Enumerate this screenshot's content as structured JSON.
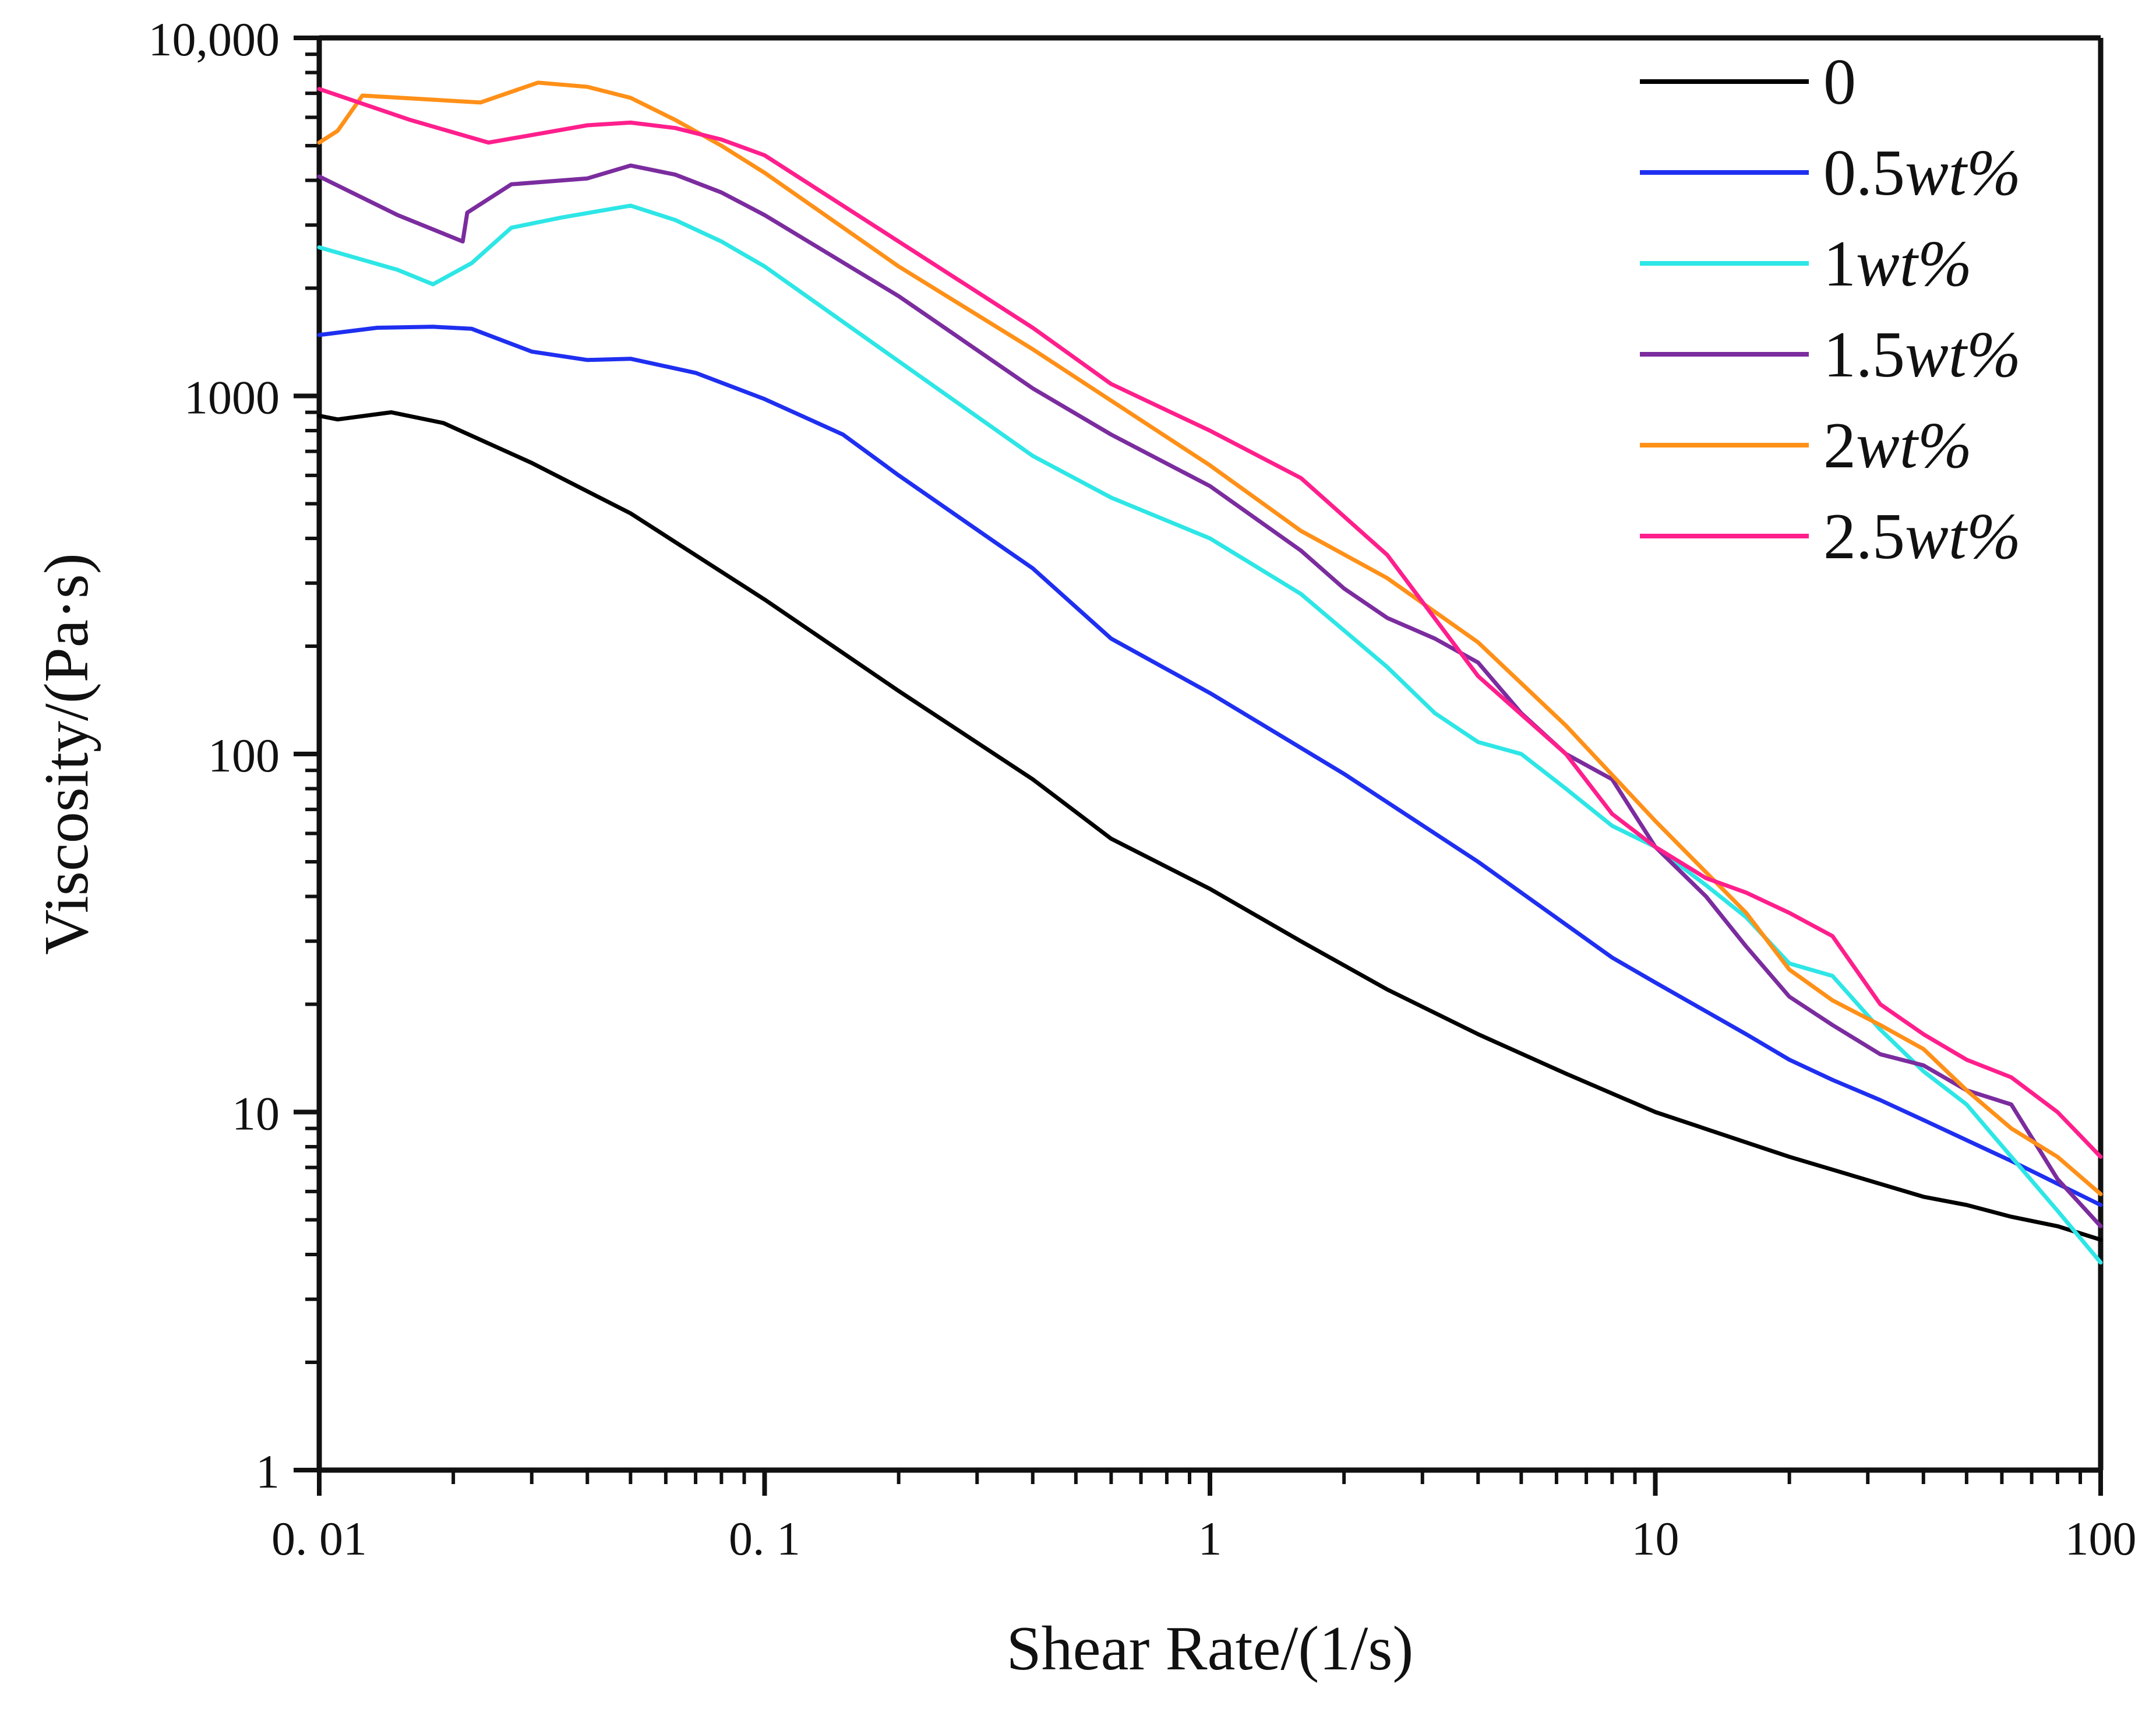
{
  "chart_data": {
    "type": "line",
    "title": "",
    "xlabel": "Shear Rate/(1/s)",
    "ylabel": "Viscosity/(Pa·s)",
    "xscale": "log",
    "yscale": "log",
    "xlim": [
      0.01,
      100
    ],
    "ylim": [
      1,
      10000
    ],
    "x_ticks": [
      {
        "value": 0.01,
        "label": "0. 01"
      },
      {
        "value": 0.1,
        "label": "0. 1"
      },
      {
        "value": 1,
        "label": "1"
      },
      {
        "value": 10,
        "label": "10"
      },
      {
        "value": 100,
        "label": "100"
      }
    ],
    "y_ticks": [
      {
        "value": 1,
        "label": "1"
      },
      {
        "value": 10,
        "label": "10"
      },
      {
        "value": 100,
        "label": "100"
      },
      {
        "value": 1000,
        "label": "1000"
      },
      {
        "value": 10000,
        "label": "10,000"
      }
    ],
    "legend_position": "top-right",
    "series": [
      {
        "name": "0",
        "num": "0",
        "unit": "",
        "color": "#000000",
        "points": [
          [
            0.01,
            880
          ],
          [
            0.011,
            860
          ],
          [
            0.0145,
            900
          ],
          [
            0.019,
            840
          ],
          [
            0.03,
            650
          ],
          [
            0.05,
            470
          ],
          [
            0.1,
            270
          ],
          [
            0.2,
            150
          ],
          [
            0.4,
            85
          ],
          [
            0.6,
            58
          ],
          [
            1,
            42
          ],
          [
            1.6,
            30
          ],
          [
            2.5,
            22
          ],
          [
            4,
            16.5
          ],
          [
            6.3,
            12.8
          ],
          [
            10,
            10
          ],
          [
            20,
            7.5
          ],
          [
            32,
            6.3
          ],
          [
            40,
            5.8
          ],
          [
            50,
            5.5
          ],
          [
            63,
            5.1
          ],
          [
            80,
            4.8
          ],
          [
            100,
            4.4
          ]
        ]
      },
      {
        "name": "0.5wt%",
        "num": "0.5",
        "unit": "wt%",
        "color": "#1f2ff0",
        "points": [
          [
            0.01,
            1480
          ],
          [
            0.0135,
            1550
          ],
          [
            0.018,
            1560
          ],
          [
            0.022,
            1540
          ],
          [
            0.03,
            1330
          ],
          [
            0.04,
            1260
          ],
          [
            0.05,
            1270
          ],
          [
            0.07,
            1160
          ],
          [
            0.1,
            980
          ],
          [
            0.15,
            780
          ],
          [
            0.2,
            600
          ],
          [
            0.4,
            330
          ],
          [
            0.6,
            210
          ],
          [
            1,
            148
          ],
          [
            2,
            88
          ],
          [
            4,
            50
          ],
          [
            8,
            27
          ],
          [
            10,
            23
          ],
          [
            16,
            16.5
          ],
          [
            20,
            14
          ],
          [
            25,
            12.3
          ],
          [
            32,
            10.8
          ],
          [
            40,
            9.5
          ],
          [
            63,
            7.3
          ],
          [
            100,
            5.5
          ]
        ]
      },
      {
        "name": "1wt%",
        "num": "1",
        "unit": "wt%",
        "color": "#2ee6e6",
        "points": [
          [
            0.01,
            2600
          ],
          [
            0.015,
            2250
          ],
          [
            0.018,
            2050
          ],
          [
            0.022,
            2350
          ],
          [
            0.027,
            2950
          ],
          [
            0.035,
            3150
          ],
          [
            0.05,
            3400
          ],
          [
            0.063,
            3100
          ],
          [
            0.08,
            2700
          ],
          [
            0.1,
            2300
          ],
          [
            0.2,
            1250
          ],
          [
            0.4,
            680
          ],
          [
            0.6,
            520
          ],
          [
            1,
            400
          ],
          [
            1.6,
            280
          ],
          [
            2.5,
            175
          ],
          [
            3.2,
            130
          ],
          [
            4,
            108
          ],
          [
            5,
            100
          ],
          [
            6.3,
            80
          ],
          [
            8,
            63
          ],
          [
            10,
            55
          ],
          [
            13,
            43
          ],
          [
            16,
            35
          ],
          [
            20,
            26
          ],
          [
            25,
            24
          ],
          [
            32,
            17
          ],
          [
            40,
            13
          ],
          [
            50,
            10.5
          ],
          [
            63,
            7.5
          ],
          [
            80,
            5.3
          ],
          [
            100,
            3.8
          ]
        ]
      },
      {
        "name": "1.5wt%",
        "num": "1.5",
        "unit": "wt%",
        "color": "#7b2c9e",
        "points": [
          [
            0.01,
            4100
          ],
          [
            0.015,
            3200
          ],
          [
            0.021,
            2700
          ],
          [
            0.0215,
            3250
          ],
          [
            0.027,
            3900
          ],
          [
            0.04,
            4050
          ],
          [
            0.05,
            4400
          ],
          [
            0.063,
            4150
          ],
          [
            0.08,
            3700
          ],
          [
            0.1,
            3200
          ],
          [
            0.2,
            1900
          ],
          [
            0.4,
            1050
          ],
          [
            0.6,
            780
          ],
          [
            1,
            560
          ],
          [
            1.6,
            370
          ],
          [
            2,
            290
          ],
          [
            2.5,
            240
          ],
          [
            3.2,
            210
          ],
          [
            4,
            180
          ],
          [
            5,
            130
          ],
          [
            6.3,
            100
          ],
          [
            8,
            85
          ],
          [
            10,
            55
          ],
          [
            13,
            40
          ],
          [
            16,
            29
          ],
          [
            20,
            21
          ],
          [
            25,
            17.5
          ],
          [
            32,
            14.5
          ],
          [
            40,
            13.5
          ],
          [
            50,
            11.5
          ],
          [
            63,
            10.5
          ],
          [
            80,
            6.5
          ],
          [
            100,
            4.8
          ]
        ]
      },
      {
        "name": "2wt%",
        "num": "2",
        "unit": "wt%",
        "color": "#ff9018",
        "points": [
          [
            0.01,
            5100
          ],
          [
            0.011,
            5500
          ],
          [
            0.0125,
            6900
          ],
          [
            0.023,
            6600
          ],
          [
            0.031,
            7500
          ],
          [
            0.04,
            7300
          ],
          [
            0.05,
            6800
          ],
          [
            0.063,
            5900
          ],
          [
            0.08,
            5000
          ],
          [
            0.1,
            4200
          ],
          [
            0.2,
            2300
          ],
          [
            0.4,
            1350
          ],
          [
            0.6,
            970
          ],
          [
            1,
            640
          ],
          [
            1.6,
            420
          ],
          [
            2.5,
            310
          ],
          [
            4,
            205
          ],
          [
            6.3,
            120
          ],
          [
            10,
            65
          ],
          [
            16,
            36
          ],
          [
            20,
            25
          ],
          [
            25,
            20.5
          ],
          [
            32,
            17.5
          ],
          [
            40,
            15
          ],
          [
            50,
            11.5
          ],
          [
            63,
            9
          ],
          [
            80,
            7.5
          ],
          [
            100,
            5.9
          ]
        ]
      },
      {
        "name": "2.5wt%",
        "num": "2.5",
        "unit": "wt%",
        "color": "#ff1f8c",
        "points": [
          [
            0.01,
            7200
          ],
          [
            0.016,
            5900
          ],
          [
            0.024,
            5100
          ],
          [
            0.04,
            5700
          ],
          [
            0.05,
            5800
          ],
          [
            0.063,
            5600
          ],
          [
            0.08,
            5200
          ],
          [
            0.1,
            4700
          ],
          [
            0.2,
            2700
          ],
          [
            0.4,
            1550
          ],
          [
            0.6,
            1080
          ],
          [
            1,
            800
          ],
          [
            1.6,
            590
          ],
          [
            2.5,
            360
          ],
          [
            4,
            165
          ],
          [
            6.3,
            100
          ],
          [
            8,
            68
          ],
          [
            10,
            55
          ],
          [
            13,
            45
          ],
          [
            16,
            41
          ],
          [
            20,
            36
          ],
          [
            25,
            31
          ],
          [
            32,
            20
          ],
          [
            40,
            16.5
          ],
          [
            50,
            14
          ],
          [
            63,
            12.5
          ],
          [
            80,
            10
          ],
          [
            100,
            7.5
          ]
        ]
      }
    ]
  }
}
